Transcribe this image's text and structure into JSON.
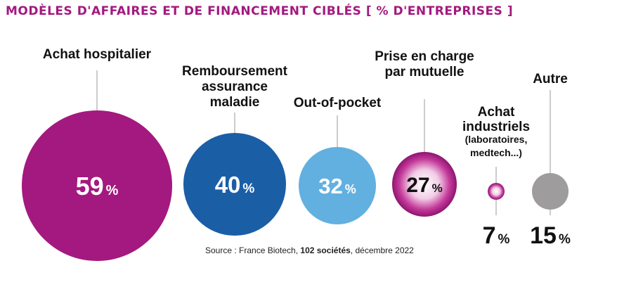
{
  "title": "MODÈLES D'AFFAIRES ET DE FINANCEMENT CIBLÉS [ % D'ENTREPRISES ]",
  "source": {
    "prefix": "Source : France Biotech, ",
    "bold": "102 sociétés",
    "suffix": ", décembre 2022"
  },
  "chart_data": {
    "type": "bubble",
    "unit": "%",
    "categories": [
      "Achat hospitalier",
      "Remboursement assurance maladie",
      "Out-of-pocket",
      "Prise en charge par mutuelle",
      "Achat industriels",
      "Autre"
    ],
    "values": [
      59,
      40,
      32,
      27,
      7,
      15
    ],
    "subtitles": [
      "",
      "",
      "",
      "",
      "(laboratoires, medtech...)",
      ""
    ],
    "colors": [
      "#a3197f",
      "#1a5ea6",
      "#62b0e0",
      "#b0208a",
      "#b0208a",
      "#9e9c9d"
    ]
  }
}
